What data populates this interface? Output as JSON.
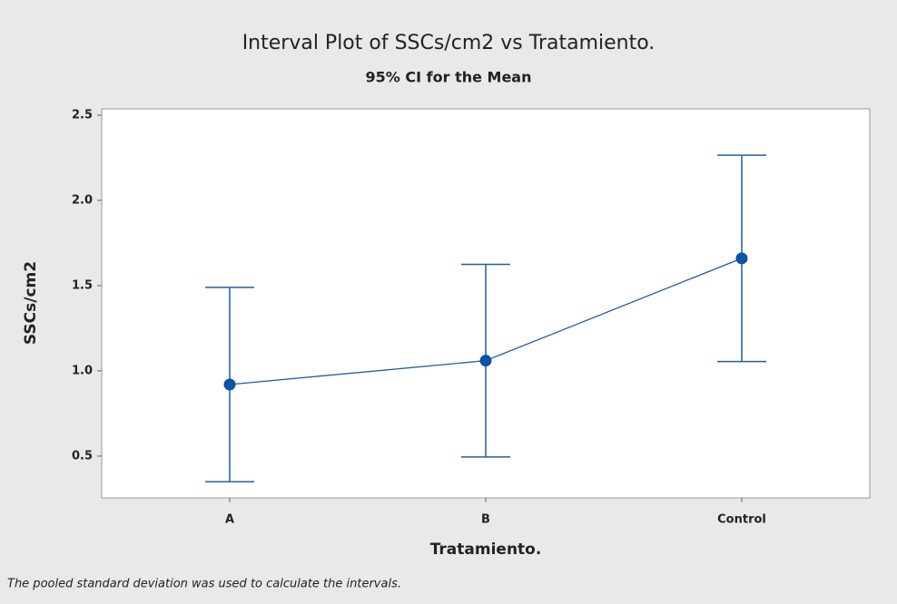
{
  "chart_data": {
    "type": "interval",
    "title": "Interval Plot of SSCs/cm2 vs Tratamiento.",
    "subtitle": "95% CI for the Mean",
    "x_label": "Tratamiento.",
    "y_label": "SSCs/cm2",
    "footnote": "The pooled standard deviation was used to calculate the intervals.",
    "categories": [
      "A",
      "B",
      "Control"
    ],
    "values": [
      0.92,
      1.06,
      1.66
    ],
    "errors": [
      0.57,
      0.565,
      0.605
    ],
    "color": "#1f5fa6",
    "ylim": [
      0.255,
      2.537
    ],
    "yticks": [
      0.5,
      {
        "value": 1.0,
        "label": "1.0"
      },
      1.5,
      {
        "value": 2.0,
        "label": "2.0"
      },
      2.5
    ]
  }
}
